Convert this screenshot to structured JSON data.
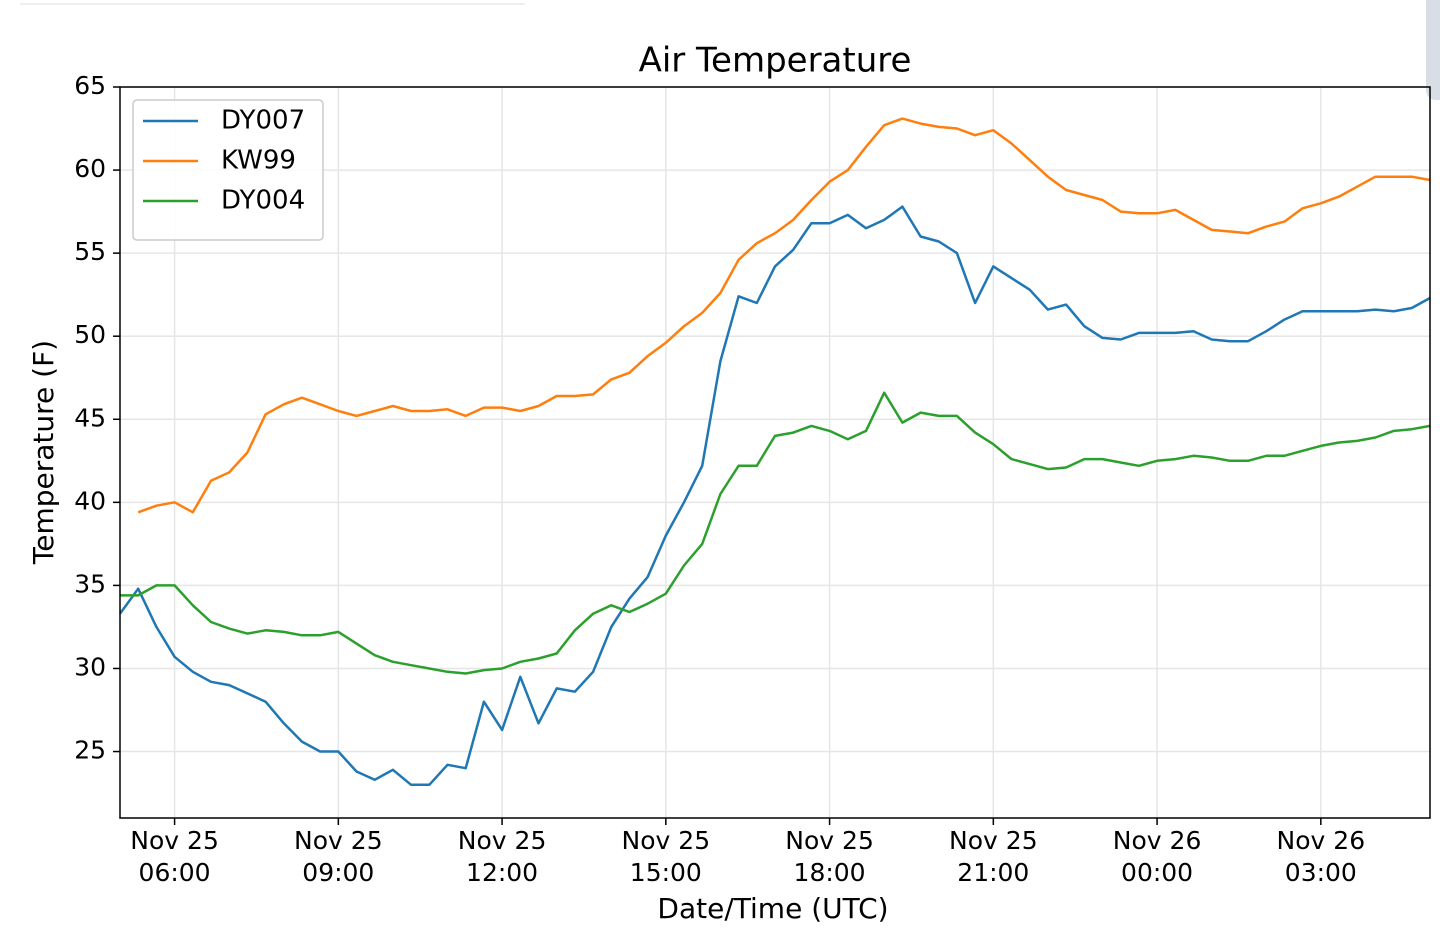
{
  "chart_data": {
    "type": "line",
    "title": "Air Temperature",
    "x_label": "Date/Time (UTC)",
    "y_label": "Temperature (F)",
    "x": [
      "Nov 25 05:00",
      "Nov 25 05:20",
      "Nov 25 05:40",
      "Nov 25 06:00",
      "Nov 25 06:20",
      "Nov 25 06:40",
      "Nov 25 07:00",
      "Nov 25 07:20",
      "Nov 25 07:40",
      "Nov 25 08:00",
      "Nov 25 08:20",
      "Nov 25 08:40",
      "Nov 25 09:00",
      "Nov 25 09:20",
      "Nov 25 09:40",
      "Nov 25 10:00",
      "Nov 25 10:20",
      "Nov 25 10:40",
      "Nov 25 11:00",
      "Nov 25 11:20",
      "Nov 25 11:40",
      "Nov 25 12:00",
      "Nov 25 12:20",
      "Nov 25 12:40",
      "Nov 25 13:00",
      "Nov 25 13:20",
      "Nov 25 13:40",
      "Nov 25 14:00",
      "Nov 25 14:20",
      "Nov 25 14:40",
      "Nov 25 15:00",
      "Nov 25 15:20",
      "Nov 25 15:40",
      "Nov 25 16:00",
      "Nov 25 16:20",
      "Nov 25 16:40",
      "Nov 25 17:00",
      "Nov 25 17:20",
      "Nov 25 17:40",
      "Nov 25 18:00",
      "Nov 25 18:20",
      "Nov 25 18:40",
      "Nov 25 19:00",
      "Nov 25 19:20",
      "Nov 25 19:40",
      "Nov 25 20:00",
      "Nov 25 20:20",
      "Nov 25 20:40",
      "Nov 25 21:00",
      "Nov 25 21:20",
      "Nov 25 21:40",
      "Nov 25 22:00",
      "Nov 25 22:20",
      "Nov 25 22:40",
      "Nov 25 23:00",
      "Nov 25 23:20",
      "Nov 25 23:40",
      "Nov 26 00:00",
      "Nov 26 00:20",
      "Nov 26 00:40",
      "Nov 26 01:00",
      "Nov 26 01:20",
      "Nov 26 01:40",
      "Nov 26 02:00",
      "Nov 26 02:20",
      "Nov 26 02:40",
      "Nov 26 03:00",
      "Nov 26 03:20",
      "Nov 26 03:40",
      "Nov 26 04:00",
      "Nov 26 04:20",
      "Nov 26 04:40",
      "Nov 26 05:00"
    ],
    "series": [
      {
        "name": "DY007",
        "color": "#1f77b4",
        "values": [
          33.3,
          34.8,
          32.5,
          30.7,
          29.8,
          29.2,
          29.0,
          28.5,
          28.0,
          26.7,
          25.6,
          25.0,
          25.0,
          23.8,
          23.3,
          23.9,
          23.0,
          23.0,
          24.2,
          24.0,
          28.0,
          26.3,
          29.5,
          26.7,
          28.8,
          28.6,
          29.8,
          32.5,
          34.2,
          35.5,
          38.0,
          40.0,
          42.2,
          48.5,
          52.4,
          52.0,
          54.2,
          55.2,
          56.8,
          56.8,
          57.3,
          56.5,
          57.0,
          57.8,
          56.0,
          55.7,
          55.0,
          52.0,
          54.2,
          53.5,
          52.8,
          51.6,
          51.9,
          50.6,
          49.9,
          49.8,
          50.2,
          50.2,
          50.2,
          50.3,
          49.8,
          49.7,
          49.7,
          50.3,
          51.0,
          51.5,
          51.5,
          51.5,
          51.5,
          51.6,
          51.5,
          51.7,
          52.3
        ]
      },
      {
        "name": "KW99",
        "color": "#ff7f0e",
        "values": [
          null,
          39.4,
          39.8,
          40.0,
          39.4,
          41.3,
          41.8,
          43.0,
          45.3,
          45.9,
          46.3,
          45.9,
          45.5,
          45.2,
          45.5,
          45.8,
          45.5,
          45.5,
          45.6,
          45.2,
          45.7,
          45.7,
          45.5,
          45.8,
          46.4,
          46.4,
          46.5,
          47.4,
          47.8,
          48.8,
          49.6,
          50.6,
          51.4,
          52.6,
          54.6,
          55.6,
          56.2,
          57.0,
          58.2,
          59.3,
          60.0,
          61.4,
          62.7,
          63.1,
          62.8,
          62.6,
          62.5,
          62.1,
          62.4,
          61.6,
          60.6,
          59.6,
          58.8,
          58.5,
          58.2,
          57.5,
          57.4,
          57.4,
          57.6,
          57.0,
          56.4,
          56.3,
          56.2,
          56.6,
          56.9,
          57.7,
          58.0,
          58.4,
          59.0,
          59.6,
          59.6,
          59.6,
          59.4
        ]
      },
      {
        "name": "DY004",
        "color": "#2ca02c",
        "values": [
          34.4,
          34.4,
          35.0,
          35.0,
          33.8,
          32.8,
          32.4,
          32.1,
          32.3,
          32.2,
          32.0,
          32.0,
          32.2,
          31.5,
          30.8,
          30.4,
          30.2,
          30.0,
          29.8,
          29.7,
          29.9,
          30.0,
          30.4,
          30.6,
          30.9,
          32.3,
          33.3,
          33.8,
          33.4,
          33.9,
          34.5,
          36.2,
          37.5,
          40.5,
          42.2,
          42.2,
          44.0,
          44.2,
          44.6,
          44.3,
          43.8,
          44.3,
          46.6,
          44.8,
          45.4,
          45.2,
          45.2,
          44.2,
          43.5,
          42.6,
          42.3,
          42.0,
          42.1,
          42.6,
          42.6,
          42.4,
          42.2,
          42.5,
          42.6,
          42.8,
          42.7,
          42.5,
          42.5,
          42.8,
          42.8,
          43.1,
          43.4,
          43.6,
          43.7,
          43.9,
          44.3,
          44.4,
          44.6
        ]
      }
    ],
    "xlim": [
      "Nov 25 05:00",
      "Nov 26 05:00"
    ],
    "xticks": [
      "Nov 25 06:00",
      "Nov 25 09:00",
      "Nov 25 12:00",
      "Nov 25 15:00",
      "Nov 25 18:00",
      "Nov 25 21:00",
      "Nov 26 00:00",
      "Nov 26 03:00"
    ],
    "ylim": [
      21,
      65
    ],
    "yticks": [
      25,
      30,
      35,
      40,
      45,
      50,
      55,
      60,
      65
    ],
    "grid": true,
    "legend": "upper left"
  }
}
